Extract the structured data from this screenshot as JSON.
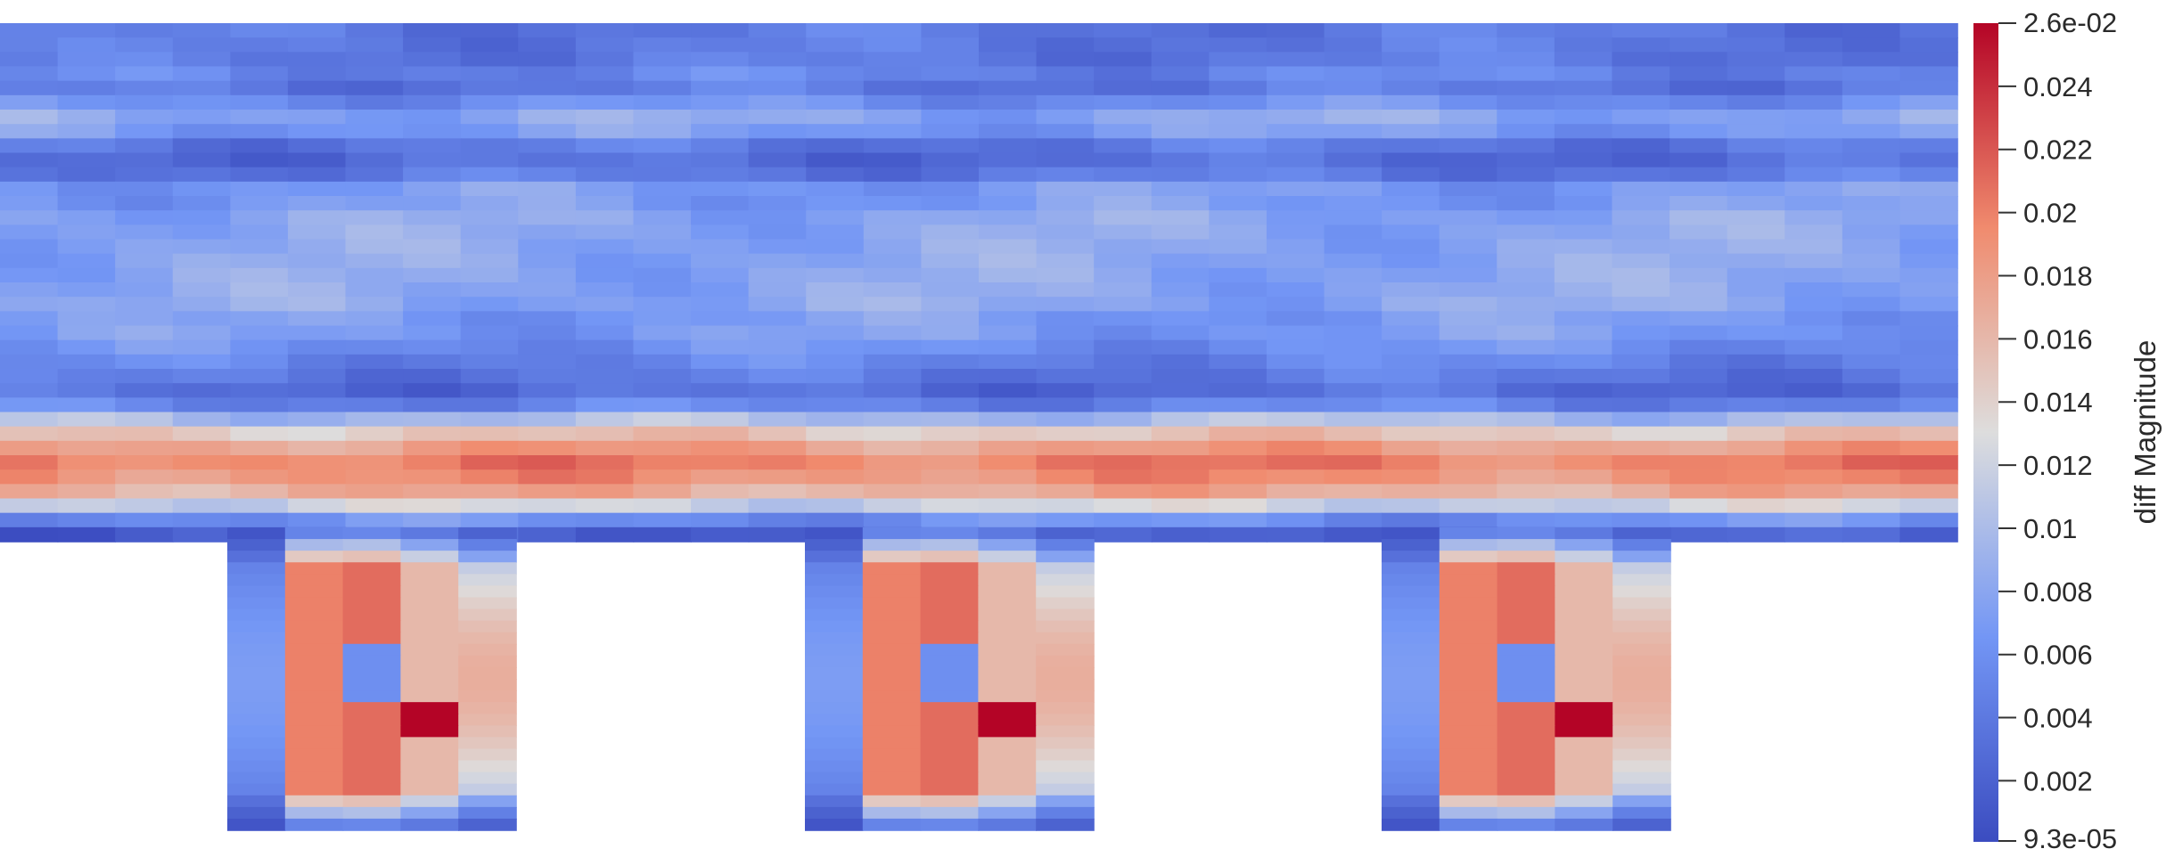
{
  "colorbar": {
    "title": "diff Magnitude",
    "max_label": "2.6e-02",
    "min_label": "9.3e-05",
    "ticks": [
      "0.024",
      "0.022",
      "0.02",
      "0.018",
      "0.016",
      "0.014",
      "0.012",
      "0.01",
      "0.008",
      "0.006",
      "0.004",
      "0.002"
    ],
    "tick_values": [
      0.024,
      0.022,
      0.02,
      0.018,
      0.016,
      0.014,
      0.012,
      0.01,
      0.008,
      0.006,
      0.004,
      0.002
    ],
    "range": [
      9.3e-05,
      0.026
    ],
    "colormap": "Cool to Warm",
    "colors": {
      "low": "#3b4cc0",
      "mid": "#dddddd",
      "high": "#b40426"
    }
  },
  "field": {
    "channel_profile": [
      0.004,
      0.004,
      0.004,
      0.005,
      0.004,
      0.006,
      0.008,
      0.007,
      0.004,
      0.003,
      0.004,
      0.007,
      0.007,
      0.008,
      0.008,
      0.008,
      0.008,
      0.008,
      0.008,
      0.008,
      0.007,
      0.007,
      0.006,
      0.005,
      0.004,
      0.003,
      0.005,
      0.01,
      0.015,
      0.018,
      0.02,
      0.019,
      0.017,
      0.012,
      0.006,
      0.002
    ],
    "block_profile": [
      0.006,
      0.02,
      0.021,
      0.016,
      0.014
    ],
    "block_count": 3
  }
}
